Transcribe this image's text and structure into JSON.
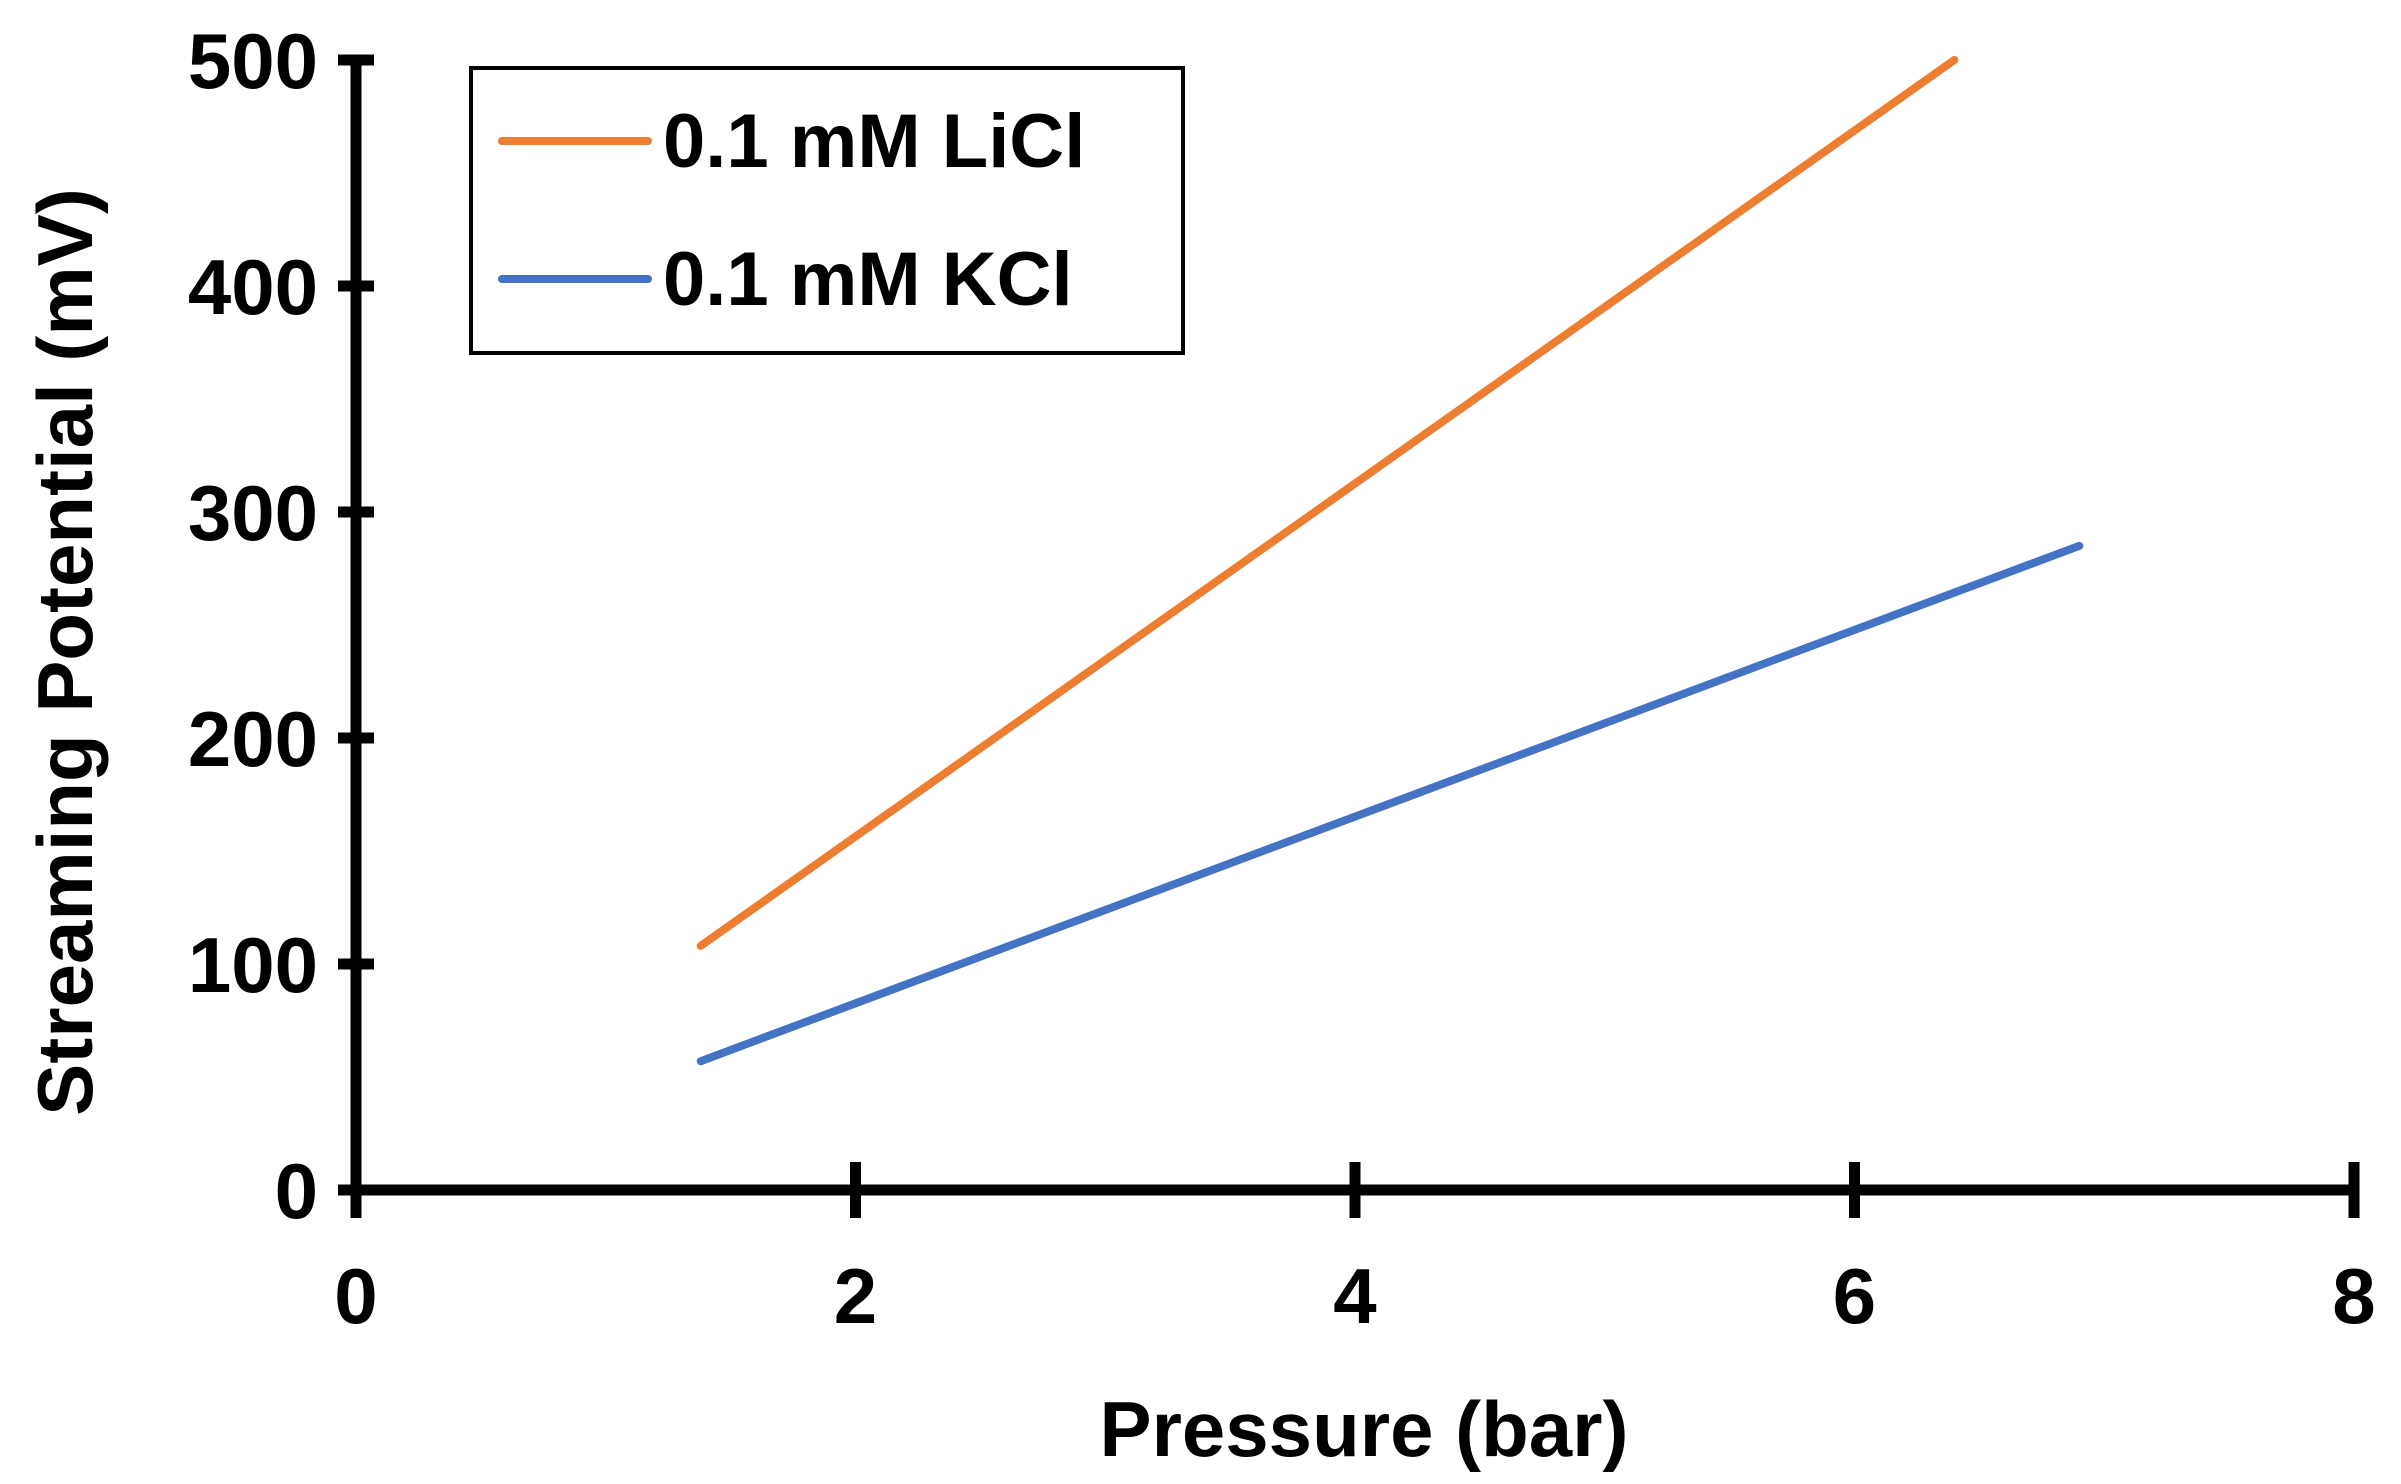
{
  "chart_data": {
    "type": "line",
    "title": "",
    "xlabel": "Pressure (bar)",
    "ylabel": "Streaming Potential (mV)",
    "xlim": [
      0,
      8
    ],
    "ylim": [
      0,
      500
    ],
    "xticks": [
      0,
      2,
      4,
      6,
      8
    ],
    "yticks": [
      0,
      100,
      200,
      300,
      400,
      500
    ],
    "xtick_labels": [
      "0",
      "2",
      "4",
      "6",
      "8"
    ],
    "ytick_labels": [
      "0",
      "100",
      "200",
      "300",
      "400",
      "500"
    ],
    "grid": false,
    "legend": "top-left",
    "series": [
      {
        "name": "0.1 mM LiCl",
        "color": "#ED7D31",
        "x": [
          1.38,
          6.4
        ],
        "y": [
          108,
          500
        ]
      },
      {
        "name": "0.1 mM KCl",
        "color": "#4472C4",
        "x": [
          1.38,
          6.9
        ],
        "y": [
          57,
          285
        ]
      }
    ]
  }
}
